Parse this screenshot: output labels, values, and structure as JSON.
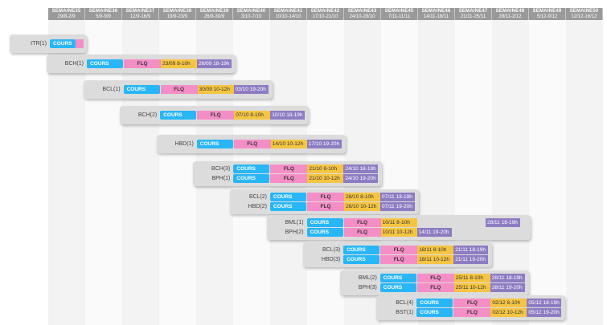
{
  "colors": {
    "cours": "#29b6f6",
    "flq": "#f48ec6",
    "slot1": "#f5c542",
    "slot2": "#8e7cc3"
  },
  "weeks": [
    {
      "name": "SEMAINE35",
      "dates": "29/8-2/9"
    },
    {
      "name": "SEMAINE36",
      "dates": "5/9-9/9"
    },
    {
      "name": "SEMAINE37",
      "dates": "12/9-16/9"
    },
    {
      "name": "SEMAINE38",
      "dates": "19/9-23/9"
    },
    {
      "name": "SEMAINE39",
      "dates": "26/9-30/9"
    },
    {
      "name": "SEMAINE40",
      "dates": "3/10-7/10"
    },
    {
      "name": "SEMAINE41",
      "dates": "10/10-14/10"
    },
    {
      "name": "SEMAINE42",
      "dates": "17/10-21/10"
    },
    {
      "name": "SEMAINE43",
      "dates": "24/10-28/10"
    },
    {
      "name": "SEMAINE45",
      "dates": "7/11-11/11"
    },
    {
      "name": "SEMAINE46",
      "dates": "14/11-18/11"
    },
    {
      "name": "SEMAINE47",
      "dates": "21/11-25/11"
    },
    {
      "name": "SEMAINE48",
      "dates": "28/11-2/12"
    },
    {
      "name": "SEMAINE49",
      "dates": "5/12-9/12"
    },
    {
      "name": "SEMAINE50",
      "dates": "12/12-16/12"
    }
  ],
  "groups": [
    {
      "rows": [
        {
          "label": "ITR(1)",
          "cours": "COURS",
          "flq": "",
          "slot1": "",
          "slot2": ""
        }
      ]
    },
    {
      "rows": [
        {
          "label": "BCH(1)",
          "cours": "COURS",
          "flq": "FLQ",
          "slot1": "23/09 8-10h",
          "slot2": "26/09 18-19h"
        }
      ]
    },
    {
      "rows": [
        {
          "label": "BCL(1)",
          "cours": "COURS",
          "flq": "FLQ",
          "slot1": "30/09 10-12h",
          "slot2": "03/10 19-20h"
        }
      ]
    },
    {
      "rows": [
        {
          "label": "BCH(2)",
          "cours": "COURS",
          "flq": "FLQ",
          "slot1": "07/10 8-10h",
          "slot2": "10/10 18-19h"
        }
      ]
    },
    {
      "rows": [
        {
          "label": "HBD(1)",
          "cours": "COURS",
          "flq": "FLQ",
          "slot1": "14/10 10-12h",
          "slot2": "17/10 19-20h"
        }
      ]
    },
    {
      "rows": [
        {
          "label": "BCH(3)",
          "cours": "COURS",
          "flq": "FLQ",
          "slot1": "21/10 8-10h",
          "slot2": "24/10 18-19h"
        },
        {
          "label": "BPH(1)",
          "cours": "COURS",
          "flq": "FLQ",
          "slot1": "21/10 10-12h",
          "slot2": "24/10 19-20h"
        }
      ]
    },
    {
      "rows": [
        {
          "label": "BCL(2)",
          "cours": "COURS",
          "flq": "FLQ",
          "slot1": "28/10 8-10h",
          "slot2": "07/11 18-19h"
        },
        {
          "label": "HBD(2)",
          "cours": "COURS",
          "flq": "FLQ",
          "slot1": "28/10 10-12h",
          "slot2": "07/11 19-20h"
        }
      ]
    },
    {
      "rows": [
        {
          "label": "BML(1)",
          "cours": "COURS",
          "flq": "FLQ",
          "slot1": "10/11 8-10h",
          "slot2": "28/11 18-19h"
        },
        {
          "label": "BPH(2)",
          "cours": "COURS",
          "flq": "FLQ",
          "slot1": "10/11 10-12h",
          "slot2": "14/11 19-20h"
        }
      ]
    },
    {
      "rows": [
        {
          "label": "BCL(3)",
          "cours": "COURS",
          "flq": "FLQ",
          "slot1": "18/11 8-10h",
          "slot2": "21/11 18-19h"
        },
        {
          "label": "HBD(3)",
          "cours": "COURS",
          "flq": "FLQ",
          "slot1": "18/11 10-12h",
          "slot2": "21/11 19-20h"
        }
      ]
    },
    {
      "rows": [
        {
          "label": "BML(2)",
          "cours": "COURS",
          "flq": "FLQ",
          "slot1": "25/11 8-10h",
          "slot2": "28/11 18-19h"
        },
        {
          "label": "BPH(3)",
          "cours": "COURS",
          "flq": "FLQ",
          "slot1": "25/11 10-12h",
          "slot2": "28/11 19-20h"
        }
      ]
    },
    {
      "rows": [
        {
          "label": "BCL(4)",
          "cours": "COURS",
          "flq": "FLQ",
          "slot1": "02/12 8-10h",
          "slot2": "05/12 18-19h"
        },
        {
          "label": "BST(1)",
          "cours": "COURS",
          "flq": "FLQ",
          "slot1": "02/12 10-12h",
          "slot2": "05/12 19-20h"
        }
      ]
    }
  ]
}
